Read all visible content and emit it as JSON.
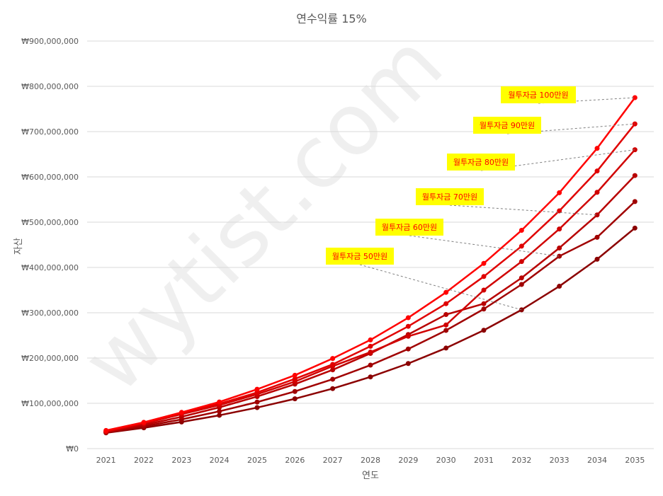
{
  "chart_data": {
    "type": "line",
    "title": "연수익률 15%",
    "xlabel": "연도",
    "ylabel": "자산",
    "categories": [
      "2021",
      "2022",
      "2023",
      "2024",
      "2025",
      "2026",
      "2027",
      "2028",
      "2029",
      "2030",
      "2031",
      "2032",
      "2033",
      "2034",
      "2035"
    ],
    "ylim": [
      0,
      900000000
    ],
    "yticks": [
      0,
      100000000,
      200000000,
      300000000,
      400000000,
      500000000,
      600000000,
      700000000,
      800000000,
      900000000
    ],
    "ytick_labels": [
      "₩0",
      "₩100,000,000",
      "₩200,000,000",
      "₩300,000,000",
      "₩400,000,000",
      "₩500,000,000",
      "₩600,000,000",
      "₩700,000,000",
      "₩800,000,000",
      "₩900,000,000"
    ],
    "grid": true,
    "series": [
      {
        "name": "월투자금 50만원",
        "color": "#8b0000",
        "values": [
          34700000,
          45900000,
          58800000,
          73500000,
          90500000,
          110000000,
          132500000,
          158300000,
          187900000,
          222000000,
          261300000,
          306500000,
          358500000,
          418200000,
          487000000
        ]
      },
      {
        "name": "월투자금 60만원",
        "color": "#a00000",
        "values": [
          35600000,
          49000000,
          64500000,
          82300000,
          102700000,
          126200000,
          153200000,
          184300000,
          220000000,
          261000000,
          308200000,
          362500000,
          424900000,
          466600000,
          545500000
        ]
      },
      {
        "name": "월투자금 70만원",
        "color": "#b80000",
        "values": [
          36500000,
          52200000,
          70200000,
          91000000,
          114900000,
          142300000,
          173900000,
          210200000,
          252000000,
          296000000,
          320000000,
          377000000,
          443000000,
          516000000,
          603000000
        ]
      },
      {
        "name": "월투자금 80만원",
        "color": "#d00000",
        "values": [
          37400000,
          55400000,
          76000000,
          96000000,
          120000000,
          148000000,
          182000000,
          213000000,
          248000000,
          273000000,
          350000000,
          413000000,
          485000000,
          566000000,
          660000000
        ]
      },
      {
        "name": "월투자금 90만원",
        "color": "#e00000",
        "values": [
          38300000,
          57000000,
          78000000,
          99000000,
          124000000,
          154000000,
          186000000,
          226000000,
          270000000,
          320000000,
          380000000,
          447000000,
          525000000,
          613000000,
          717000000
        ]
      },
      {
        "name": "월투자금 100만원",
        "color": "#ff0000",
        "values": [
          40000000,
          58000000,
          80000000,
          103000000,
          131000000,
          162000000,
          199000000,
          240000000,
          289000000,
          345000000,
          409000000,
          482000000,
          565000000,
          663000000,
          775000000
        ]
      }
    ],
    "annotations": [
      {
        "text": "월투자금 100만원",
        "series": 5,
        "point_index": 14
      },
      {
        "text": "월투자금 90만원",
        "series": 4,
        "point_index": 14
      },
      {
        "text": "월투자금 80만원",
        "series": 3,
        "point_index": 14
      },
      {
        "text": "월투자금 70만원",
        "series": 2,
        "point_index": 13
      },
      {
        "text": "월투자금 60만원",
        "series": 1,
        "point_index": 12
      },
      {
        "text": "월투자금 50만원",
        "series": 0,
        "point_index": 11
      }
    ],
    "annotation_style": {
      "background": "#ffff00",
      "text_color": "#ff0000",
      "leader_color": "#808080"
    }
  },
  "watermark": "wytist.com"
}
